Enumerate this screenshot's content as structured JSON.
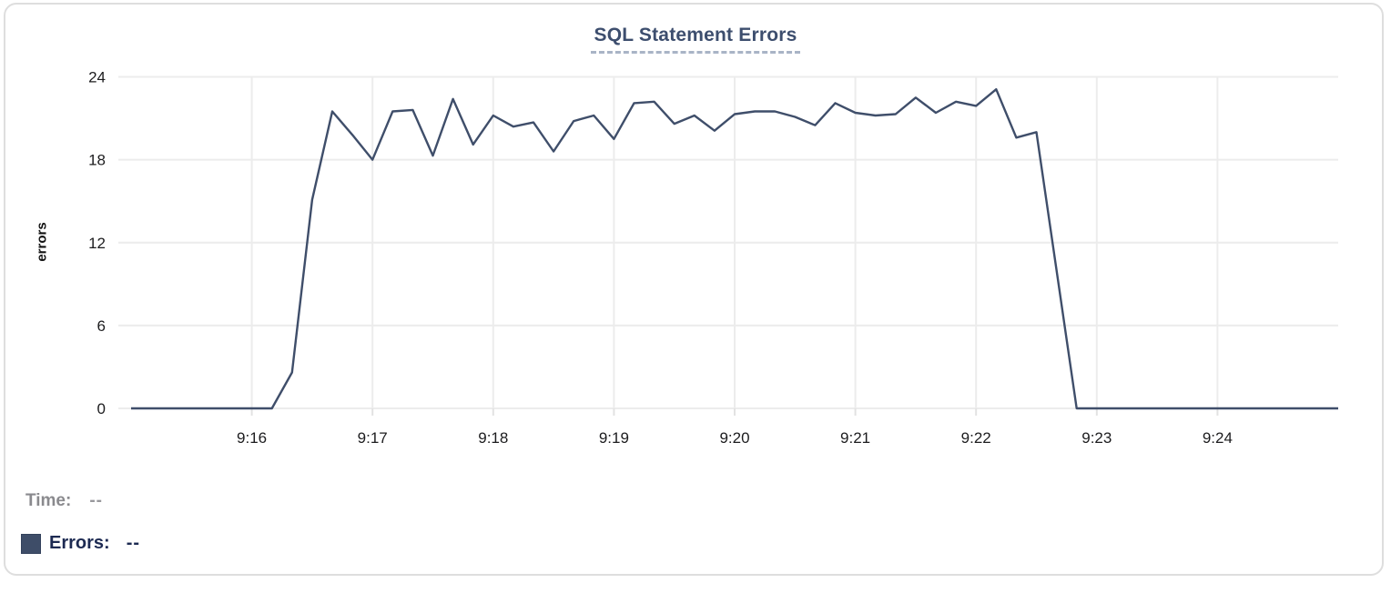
{
  "chart": {
    "title": "SQL Statement Errors",
    "ylabel": "errors"
  },
  "chart_data": {
    "type": "line",
    "title": "SQL Statement Errors",
    "xlabel": "",
    "ylabel": "errors",
    "grid": true,
    "ylim": [
      0,
      24
    ],
    "y_ticks": [
      0,
      6,
      12,
      18,
      24
    ],
    "x_ticks": [
      "9:16",
      "9:17",
      "9:18",
      "9:19",
      "9:20",
      "9:21",
      "9:22",
      "9:23",
      "9:24"
    ],
    "x_range": [
      "9:15:00",
      "9:25:00"
    ],
    "interval_seconds": 10,
    "series": [
      {
        "name": "Errors",
        "color": "#3f4e6a",
        "start_time": "9:15:00",
        "values": [
          0,
          0,
          0,
          0,
          0,
          0,
          0,
          0,
          2.6,
          15.1,
          21.5,
          19.8,
          18,
          21.5,
          21.6,
          18.3,
          22.4,
          19.1,
          21.2,
          20.4,
          20.7,
          18.6,
          20.8,
          21.2,
          19.5,
          22.1,
          22.2,
          20.6,
          21.2,
          20.1,
          21.3,
          21.5,
          21.5,
          21.1,
          20.5,
          22.1,
          21.4,
          21.2,
          21.3,
          22.5,
          21.4,
          22.2,
          21.9,
          23.1,
          19.6,
          20,
          10,
          0,
          0,
          0,
          0,
          0,
          0,
          0,
          0,
          0,
          0,
          0,
          0,
          0,
          0
        ]
      }
    ],
    "legend_position": "bottom-left"
  },
  "footer": {
    "time_label": "Time:",
    "time_value": "--",
    "errors_label": "Errors:",
    "errors_value": "--"
  },
  "colors": {
    "line": "#3f4e6a",
    "title": "#3d4e6e",
    "title_underline": "#a9b4c6",
    "gridline": "#ececec",
    "tick_mark": "#e2e2e2",
    "axis_text": "#1c1c1e",
    "card_border": "#dedede",
    "legend_swatch": "#3e4d68",
    "time_text": "#8a8a8e",
    "errors_text": "#1d2a52"
  }
}
